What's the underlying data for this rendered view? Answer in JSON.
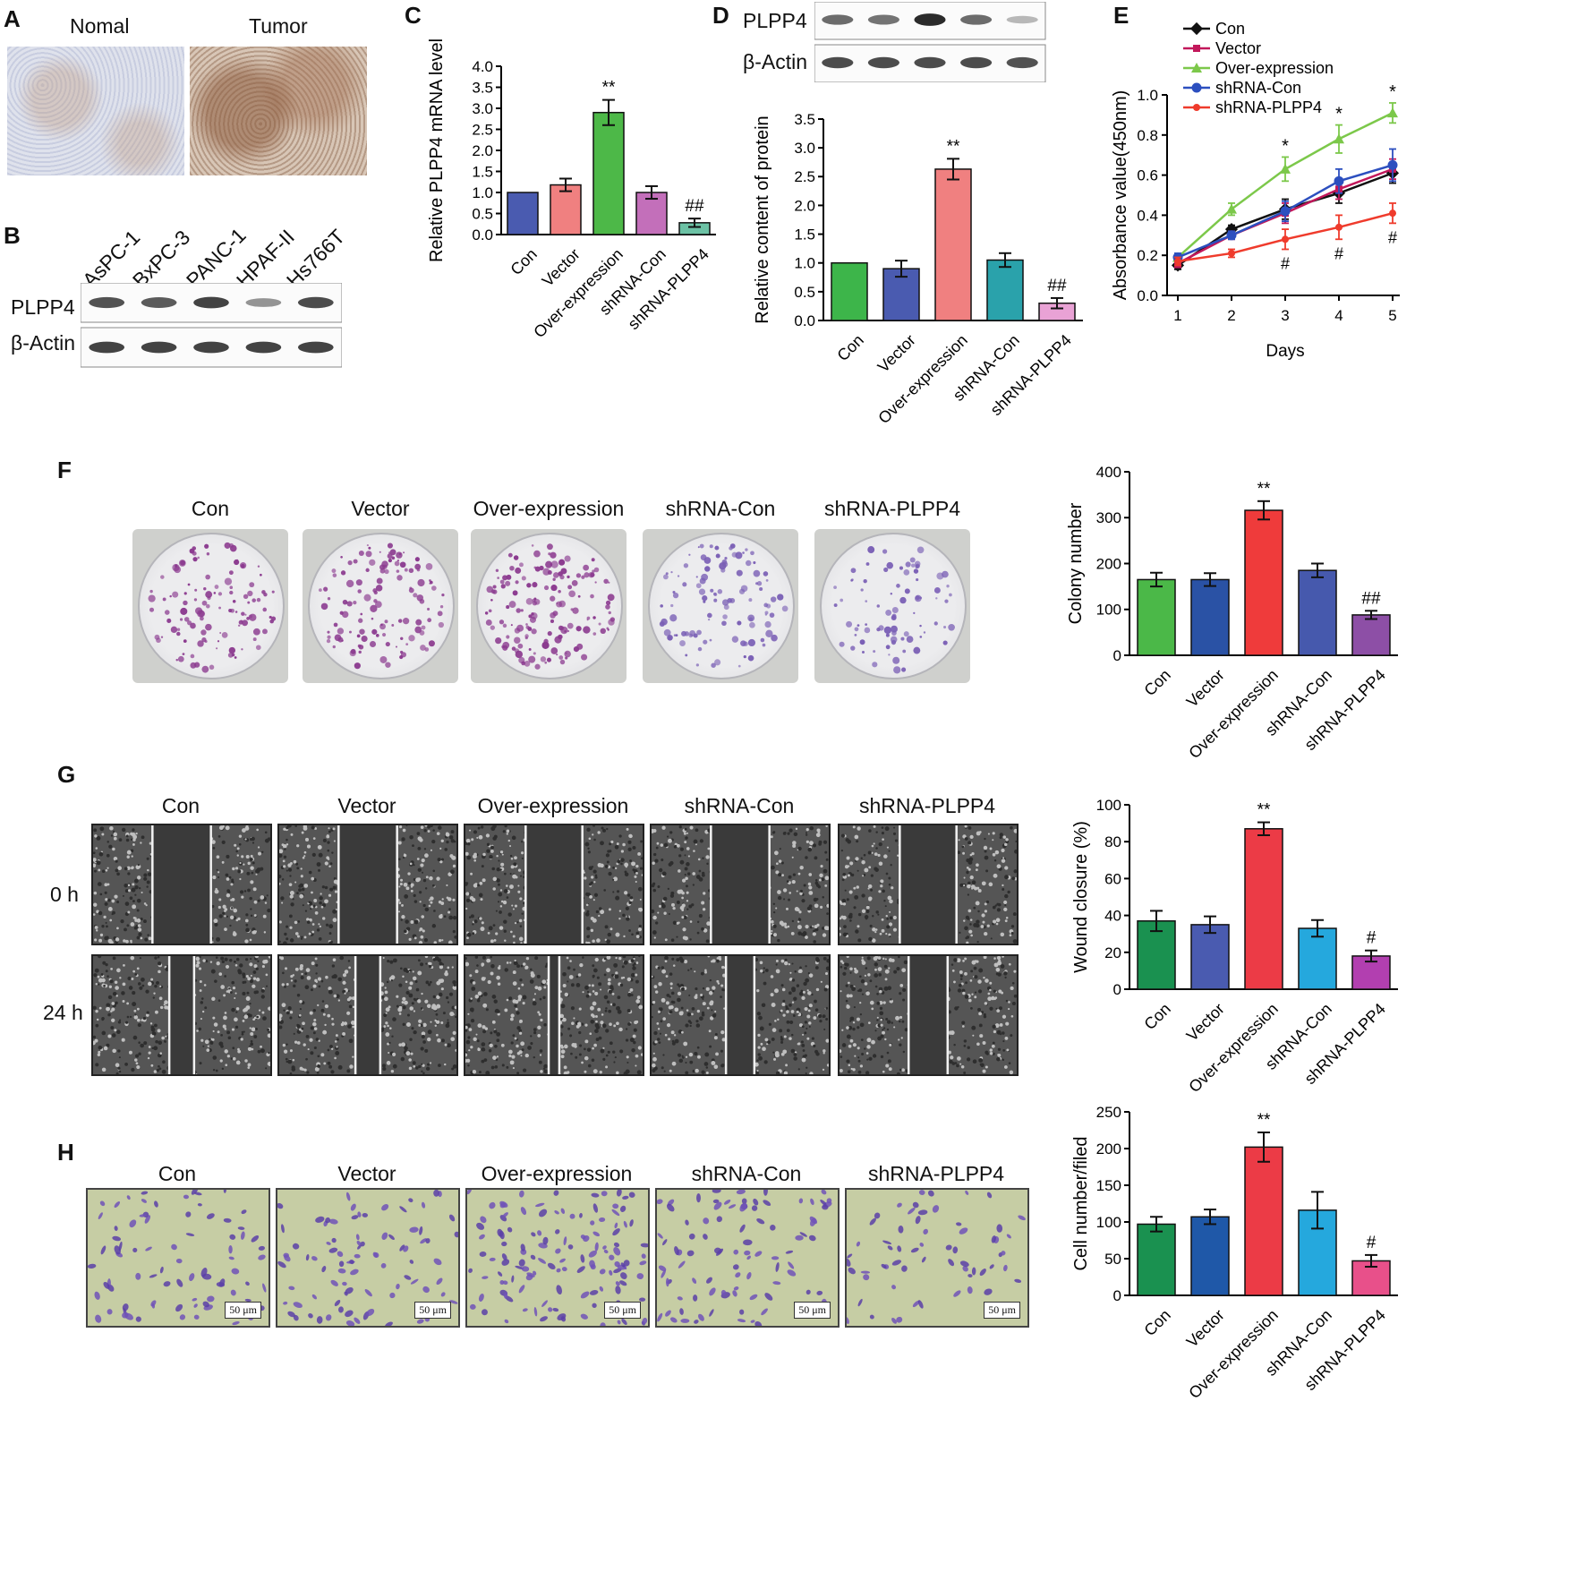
{
  "panels": {
    "A": {
      "label": "A",
      "images": [
        "Nomal",
        "Tumor"
      ]
    },
    "B": {
      "label": "B",
      "cell_lines": [
        "AsPC-1",
        "BxPC-3",
        "PANC-1",
        "HPAF-II",
        "Hs766T"
      ],
      "rows": [
        "PLPP4",
        "β-Actin"
      ],
      "PLPP4_intensity": [
        0.7,
        0.65,
        0.8,
        0.3,
        0.75
      ]
    },
    "C": {
      "label": "C"
    },
    "D": {
      "label": "D",
      "rows": [
        "PLPP4",
        "β-Actin"
      ],
      "PLPP4_intensity": [
        0.55,
        0.5,
        0.95,
        0.55,
        0.08
      ]
    },
    "E": {
      "label": "E"
    },
    "F": {
      "label": "F",
      "groups": [
        "Con",
        "Vector",
        "Over-expression",
        "shRNA-Con",
        "shRNA-PLPP4"
      ],
      "colony_density": [
        0.55,
        0.6,
        0.85,
        0.5,
        0.3
      ]
    },
    "G": {
      "label": "G",
      "groups": [
        "Con",
        "Vector",
        "Over-expression",
        "shRNA-Con",
        "shRNA-PLPP4"
      ],
      "rows": [
        "0 h",
        "24 h"
      ],
      "gap_0h": [
        0.33,
        0.33,
        0.32,
        0.33,
        0.32
      ],
      "gap_24h": [
        0.14,
        0.14,
        0.06,
        0.16,
        0.22
      ]
    },
    "H": {
      "label": "H",
      "groups": [
        "Con",
        "Vector",
        "Over-expression",
        "shRNA-Con",
        "shRNA-PLPP4"
      ],
      "scale_bar": "50 μm"
    }
  },
  "chart_data": [
    {
      "id": "C",
      "type": "bar",
      "categories": [
        "Con",
        "Vector",
        "Over-expression",
        "shRNA-Con",
        "shRNA-PLPP4"
      ],
      "values": [
        1.0,
        1.18,
        2.9,
        1.0,
        0.28
      ],
      "errors": [
        0,
        0.15,
        0.3,
        0.15,
        0.1
      ],
      "colors": [
        "#4a5bb0",
        "#f08080",
        "#4db848",
        "#c36fba",
        "#6cc2a5"
      ],
      "annotations": [
        "",
        "",
        "**",
        "",
        "##"
      ],
      "ylabel": "Relative PLPP4 mRNA level",
      "ylim": [
        0,
        4.0
      ],
      "ticks": [
        "0.0",
        "0.5",
        "1.0",
        "1.5",
        "2.0",
        "2.5",
        "3.0",
        "3.5",
        "4.0"
      ]
    },
    {
      "id": "D",
      "type": "bar",
      "categories": [
        "Con",
        "Vector",
        "Over-expression",
        "shRNA-Con",
        "shRNA-PLPP4"
      ],
      "values": [
        1.0,
        0.9,
        2.63,
        1.05,
        0.3
      ],
      "errors": [
        0,
        0.14,
        0.18,
        0.12,
        0.09
      ],
      "colors": [
        "#3db54a",
        "#4a5bb0",
        "#f08080",
        "#2aa2ab",
        "#e9a2d5"
      ],
      "annotations": [
        "",
        "",
        "**",
        "",
        "##"
      ],
      "ylabel": "Relative content of protein",
      "ylim": [
        0,
        3.5
      ],
      "ticks": [
        "0.0",
        "0.5",
        "1.0",
        "1.5",
        "2.0",
        "2.5",
        "3.0",
        "3.5"
      ]
    },
    {
      "id": "E",
      "type": "line",
      "x": [
        1,
        2,
        3,
        4,
        5
      ],
      "series": [
        {
          "name": "Con",
          "color": "#111111",
          "values": [
            0.15,
            0.33,
            0.43,
            0.51,
            0.61
          ],
          "errors": [
            0.02,
            0.02,
            0.05,
            0.05,
            0.05
          ]
        },
        {
          "name": "Vector",
          "color": "#c2185b",
          "values": [
            0.16,
            0.3,
            0.41,
            0.53,
            0.63
          ],
          "errors": [
            0.02,
            0.02,
            0.05,
            0.05,
            0.05
          ]
        },
        {
          "name": "Over-expression",
          "color": "#7cc84a",
          "values": [
            0.19,
            0.43,
            0.63,
            0.78,
            0.91
          ],
          "errors": [
            0.02,
            0.03,
            0.06,
            0.07,
            0.05
          ]
        },
        {
          "name": "shRNA-Con",
          "color": "#2c4fbf",
          "values": [
            0.19,
            0.3,
            0.42,
            0.57,
            0.65
          ],
          "errors": [
            0.02,
            0.02,
            0.05,
            0.06,
            0.08
          ]
        },
        {
          "name": "shRNA-PLPP4",
          "color": "#ef3b2c",
          "values": [
            0.17,
            0.21,
            0.28,
            0.34,
            0.41
          ],
          "errors": [
            0.02,
            0.02,
            0.05,
            0.06,
            0.05
          ]
        }
      ],
      "annotations_top": {
        "3": "*",
        "4": "*",
        "5": "*"
      },
      "annotations_bottom": {
        "3": "#",
        "4": "#",
        "5": "#"
      },
      "xlabel": "Days",
      "ylabel": "Absorbance value(450nm)",
      "ylim": [
        0,
        1.0
      ],
      "xticks": [
        "1",
        "2",
        "3",
        "4",
        "5"
      ],
      "ticks": [
        "0.0",
        "0.2",
        "0.4",
        "0.6",
        "0.8",
        "1.0"
      ]
    },
    {
      "id": "F",
      "type": "bar",
      "categories": [
        "Con",
        "Vector",
        "Over-expression",
        "shRNA-Con",
        "shRNA-PLPP4"
      ],
      "values": [
        165,
        165,
        316,
        185,
        88
      ],
      "errors": [
        15,
        14,
        20,
        15,
        9
      ],
      "colors": [
        "#4bb848",
        "#2a52a5",
        "#ef3b3b",
        "#4659ad",
        "#8d4fa6"
      ],
      "annotations": [
        "",
        "",
        "**",
        "",
        "##"
      ],
      "ylabel": "Colony number",
      "ylim": [
        0,
        400
      ],
      "ticks": [
        "0",
        "100",
        "200",
        "300",
        "400"
      ]
    },
    {
      "id": "G",
      "type": "bar",
      "categories": [
        "Con",
        "Vector",
        "Over-expression",
        "shRNA-Con",
        "shRNA-PLPP4"
      ],
      "values": [
        37,
        35,
        87,
        33,
        18
      ],
      "errors": [
        5.5,
        4.5,
        3.5,
        4.5,
        3
      ],
      "colors": [
        "#1a9150",
        "#4a5bb0",
        "#ec3b46",
        "#25a8dd",
        "#b23fb0"
      ],
      "annotations": [
        "",
        "",
        "**",
        "",
        "#"
      ],
      "ylabel": "Wound closure (%)",
      "ylim": [
        0,
        100
      ],
      "ticks": [
        "0",
        "20",
        "40",
        "60",
        "80",
        "100"
      ]
    },
    {
      "id": "H",
      "type": "bar",
      "categories": [
        "Con",
        "Vector",
        "Over-expression",
        "shRNA-Con",
        "shRNA-PLPP4"
      ],
      "values": [
        97,
        107,
        202,
        116,
        47
      ],
      "errors": [
        10,
        10,
        20,
        25,
        8
      ],
      "colors": [
        "#1a9150",
        "#1f58a8",
        "#ec3b46",
        "#25a8dd",
        "#e8508a"
      ],
      "annotations": [
        "",
        "",
        "**",
        "",
        "#"
      ],
      "ylabel": "Cell number/filed",
      "ylim": [
        0,
        250
      ],
      "ticks": [
        "0",
        "50",
        "100",
        "150",
        "200",
        "250"
      ]
    }
  ]
}
